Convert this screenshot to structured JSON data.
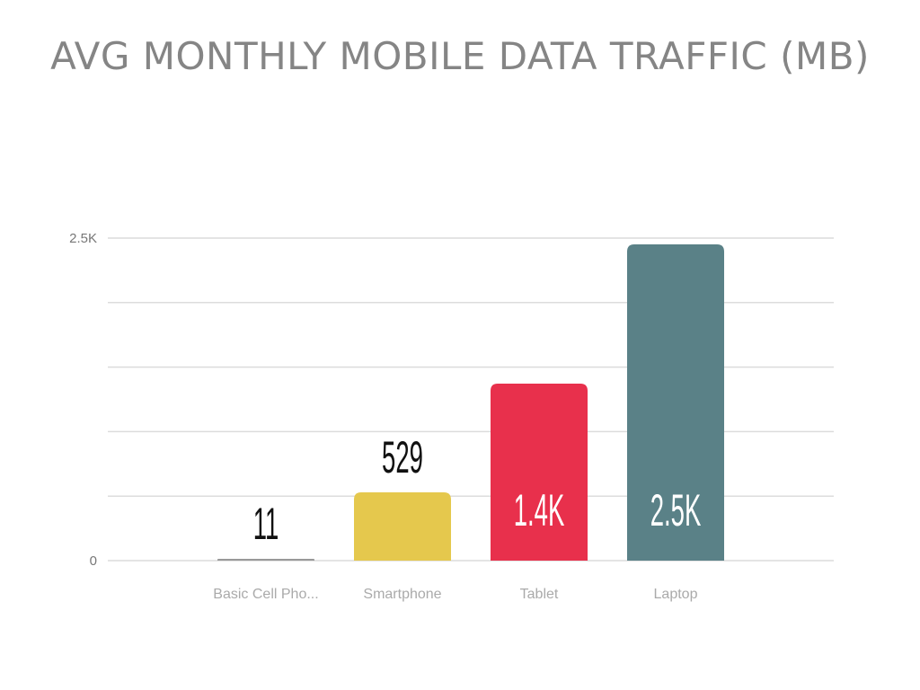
{
  "chart_data": {
    "type": "bar",
    "title": "AVG MONTHLY MOBILE DATA TRAFFIC (MB)",
    "categories": [
      "Basic Cell Pho...",
      "Smartphone",
      "Tablet",
      "Laptop"
    ],
    "values": [
      11,
      529,
      1372,
      2451
    ],
    "value_labels": [
      "11",
      "529",
      "1.4K",
      "2.5K"
    ],
    "colors": [
      "#999999",
      "#e5c84d",
      "#e8304c",
      "#5a8187"
    ],
    "ylim": [
      0,
      2500
    ],
    "yticks": [
      {
        "value": 0,
        "label": "0"
      },
      {
        "value": 2500,
        "label": "2.5K"
      }
    ],
    "grid_step": 500,
    "grid": true,
    "xlabel": "",
    "ylabel": ""
  }
}
